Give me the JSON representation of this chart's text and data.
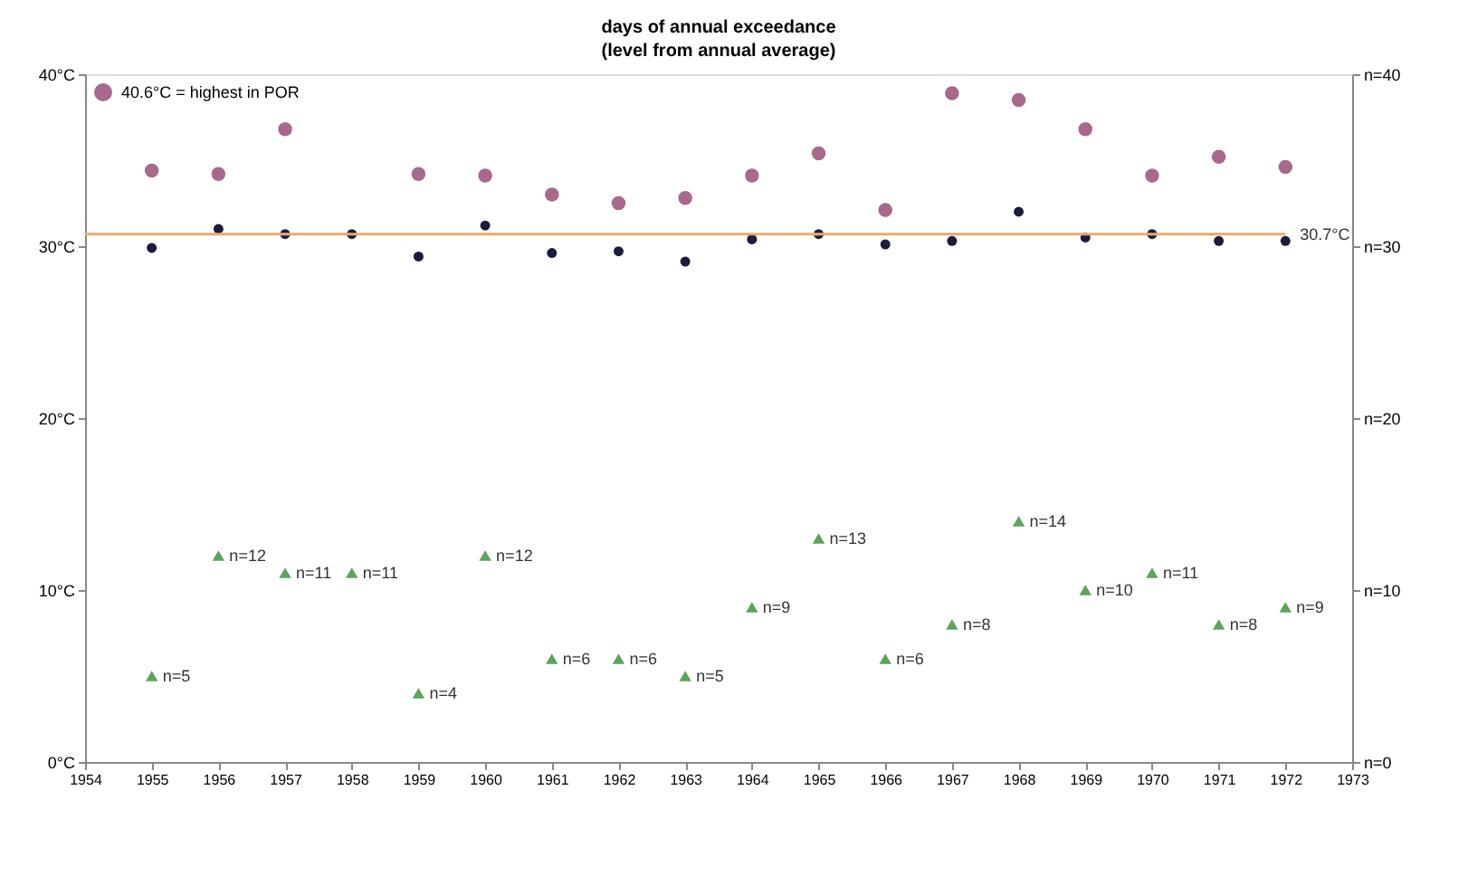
{
  "chart_data": {
    "type": "scatter",
    "title": "days of annual exceedance",
    "subtitle": "(level from annual average)",
    "x": [
      1955,
      1956,
      1957,
      1958,
      1959,
      1960,
      1961,
      1962,
      1963,
      1964,
      1965,
      1966,
      1967,
      1968,
      1969,
      1970,
      1971,
      1972
    ],
    "xlim": [
      1954,
      1973
    ],
    "xticks": [
      1954,
      1955,
      1956,
      1957,
      1958,
      1959,
      1960,
      1961,
      1962,
      1963,
      1964,
      1965,
      1966,
      1967,
      1968,
      1969,
      1970,
      1971,
      1972,
      1973
    ],
    "ylim": [
      0,
      40
    ],
    "yticks": [
      {
        "value": 0,
        "label": "0°C"
      },
      {
        "value": 10,
        "label": "10°C"
      },
      {
        "value": 20,
        "label": "20°C"
      },
      {
        "value": 30,
        "label": "30°C"
      },
      {
        "value": 40,
        "label": "40°C"
      }
    ],
    "y2lim": [
      0,
      40
    ],
    "y2ticks": [
      {
        "value": 0,
        "label": "n=0"
      },
      {
        "value": 10,
        "label": "n=10"
      },
      {
        "value": 20,
        "label": "n=20"
      },
      {
        "value": 30,
        "label": "n=30"
      },
      {
        "value": 40,
        "label": "n=40"
      }
    ],
    "grid": false,
    "legend": "top left",
    "series": [
      {
        "name": "40.6°C = highest in POR",
        "color": "#a8698c",
        "marker": "circle",
        "values": [
          34.4,
          34.2,
          36.8,
          null,
          34.2,
          34.1,
          33.0,
          32.5,
          32.8,
          34.1,
          35.4,
          32.1,
          38.9,
          38.5,
          36.8,
          34.1,
          35.2,
          34.6
        ]
      },
      {
        "color": "#1c1c3c",
        "marker": "circle",
        "values": [
          29.9,
          31.0,
          30.7,
          30.7,
          29.4,
          31.2,
          29.6,
          29.7,
          29.1,
          30.4,
          30.7,
          30.1,
          30.3,
          32.0,
          30.5,
          30.7,
          30.3,
          30.3
        ]
      },
      {
        "color": "#5aa55a",
        "marker": "triangle",
        "axis": "y2",
        "values": [
          5,
          12,
          11,
          11,
          4,
          12,
          6,
          6,
          5,
          9,
          13,
          6,
          8,
          14,
          10,
          11,
          8,
          9
        ],
        "value_labels": [
          "n=5",
          "n=12",
          "n=11",
          "n=11",
          "n=4",
          "n=12",
          "n=6",
          "n=6",
          "n=5",
          "n=9",
          "n=13",
          "n=6",
          "n=8",
          "n=14",
          "n=10",
          "n=11",
          "n=8",
          "n=9"
        ]
      }
    ],
    "ref_lines": [
      {
        "axis": "y",
        "value": 30.7,
        "label": "30.7°C",
        "color": "#f0a868"
      }
    ]
  }
}
